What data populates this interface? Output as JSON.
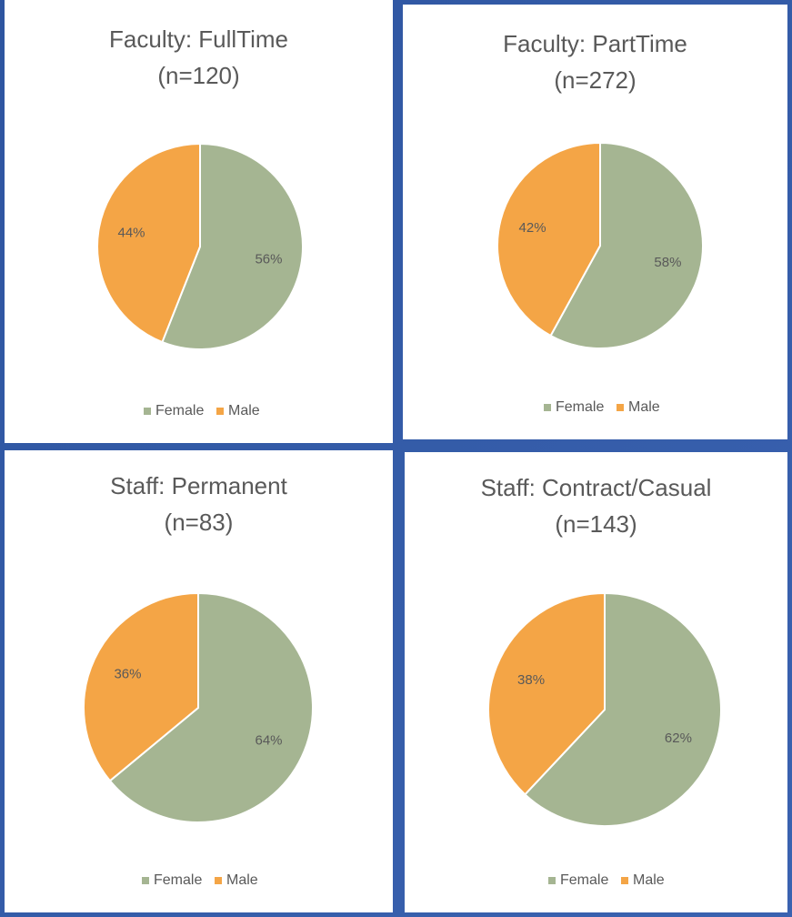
{
  "chart_data": [
    {
      "type": "pie",
      "title": "Faculty: FullTime",
      "subtitle": "(n=120)",
      "categories": [
        "Female",
        "Male"
      ],
      "values": [
        56,
        44
      ],
      "value_labels": [
        "56%",
        "44%"
      ],
      "colors": [
        "#a5b592",
        "#f4a546"
      ],
      "legend": "bottom"
    },
    {
      "type": "pie",
      "title": "Faculty: PartTime",
      "subtitle": "(n=272)",
      "categories": [
        "Female",
        "Male"
      ],
      "values": [
        58,
        42
      ],
      "value_labels": [
        "58%",
        "42%"
      ],
      "colors": [
        "#a5b592",
        "#f4a546"
      ],
      "legend": "bottom"
    },
    {
      "type": "pie",
      "title": "Staff: Permanent",
      "subtitle": "(n=83)",
      "categories": [
        "Female",
        "Male"
      ],
      "values": [
        64,
        36
      ],
      "value_labels": [
        "64%",
        "36%"
      ],
      "colors": [
        "#a5b592",
        "#f4a546"
      ],
      "legend": "bottom"
    },
    {
      "type": "pie",
      "title": "Staff: Contract/Casual",
      "subtitle": "(n=143)",
      "categories": [
        "Female",
        "Male"
      ],
      "values": [
        62,
        38
      ],
      "value_labels": [
        "62%",
        "38%"
      ],
      "colors": [
        "#a5b592",
        "#f4a546"
      ],
      "legend": "bottom"
    }
  ]
}
